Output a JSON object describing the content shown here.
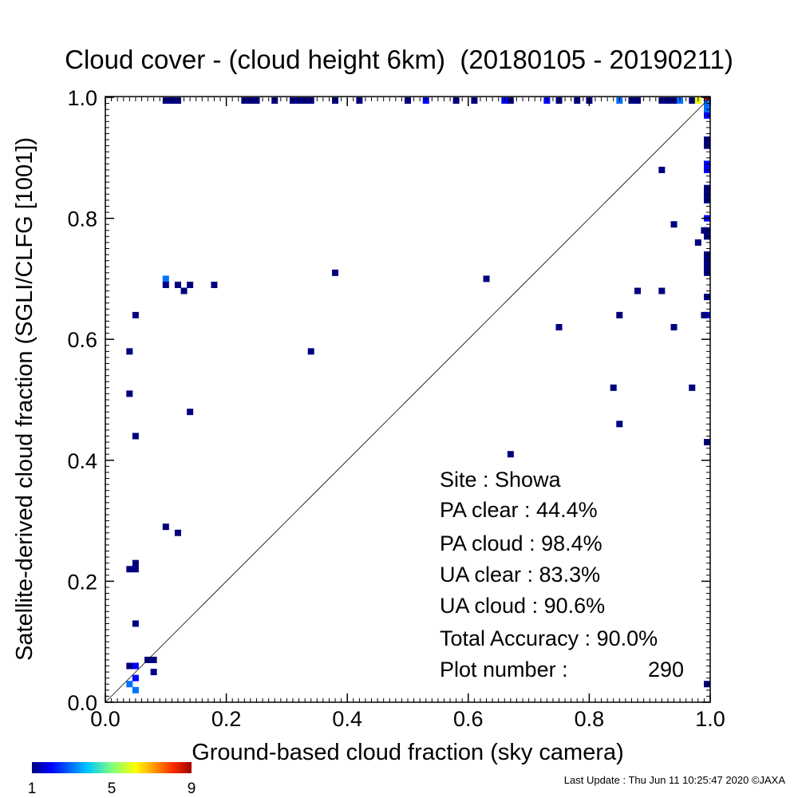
{
  "chart_data": {
    "type": "scatter",
    "title": "Cloud cover - (cloud height 6km)  (20180105 - 20190211)",
    "xlabel": "Ground-based cloud fraction (sky camera)",
    "ylabel": "Satellite-derived cloud fraction (SGLI/CLFG [1001])",
    "xlim": [
      0.0,
      1.0
    ],
    "ylim": [
      0.0,
      1.0
    ],
    "xticks": [
      "0.0",
      "0.2",
      "0.4",
      "0.6",
      "0.8",
      "1.0"
    ],
    "yticks": [
      "0.0",
      "0.2",
      "0.4",
      "0.6",
      "0.8",
      "1.0"
    ],
    "grid": false,
    "reference_line": "1:1 diagonal",
    "colorbar": {
      "ticks": [
        "1",
        "5",
        "9"
      ],
      "min": 1,
      "max": 9,
      "colors": [
        "#00007f",
        "#0000ff",
        "#00c8ff",
        "#7fff7f",
        "#ffff00",
        "#ff6400",
        "#a00000"
      ]
    },
    "points": [
      {
        "x": 0.1,
        "y": 1.0,
        "c": 1
      },
      {
        "x": 0.11,
        "y": 1.0,
        "c": 1
      },
      {
        "x": 0.12,
        "y": 1.0,
        "c": 1
      },
      {
        "x": 0.23,
        "y": 1.0,
        "c": 1
      },
      {
        "x": 0.24,
        "y": 1.0,
        "c": 1
      },
      {
        "x": 0.25,
        "y": 1.0,
        "c": 1
      },
      {
        "x": 0.28,
        "y": 1.0,
        "c": 1
      },
      {
        "x": 0.31,
        "y": 1.0,
        "c": 1
      },
      {
        "x": 0.32,
        "y": 1.0,
        "c": 1
      },
      {
        "x": 0.33,
        "y": 1.0,
        "c": 1
      },
      {
        "x": 0.34,
        "y": 1.0,
        "c": 1
      },
      {
        "x": 0.38,
        "y": 1.0,
        "c": 1
      },
      {
        "x": 0.42,
        "y": 1.0,
        "c": 1
      },
      {
        "x": 0.5,
        "y": 1.0,
        "c": 1
      },
      {
        "x": 0.53,
        "y": 1.0,
        "c": 2
      },
      {
        "x": 0.58,
        "y": 1.0,
        "c": 1
      },
      {
        "x": 0.61,
        "y": 1.0,
        "c": 1
      },
      {
        "x": 0.66,
        "y": 1.0,
        "c": 2
      },
      {
        "x": 0.67,
        "y": 1.0,
        "c": 1
      },
      {
        "x": 0.73,
        "y": 1.0,
        "c": 2
      },
      {
        "x": 0.75,
        "y": 1.0,
        "c": 1
      },
      {
        "x": 0.78,
        "y": 1.0,
        "c": 1
      },
      {
        "x": 0.8,
        "y": 1.0,
        "c": 1
      },
      {
        "x": 0.85,
        "y": 1.0,
        "c": 3
      },
      {
        "x": 0.87,
        "y": 1.0,
        "c": 1
      },
      {
        "x": 0.88,
        "y": 1.0,
        "c": 1
      },
      {
        "x": 0.92,
        "y": 1.0,
        "c": 1
      },
      {
        "x": 0.93,
        "y": 1.0,
        "c": 1
      },
      {
        "x": 0.94,
        "y": 1.0,
        "c": 1
      },
      {
        "x": 0.95,
        "y": 1.0,
        "c": 3
      },
      {
        "x": 0.97,
        "y": 1.0,
        "c": 1
      },
      {
        "x": 0.98,
        "y": 1.0,
        "c": 6
      },
      {
        "x": 1.0,
        "y": 1.0,
        "c": 9
      },
      {
        "x": 1.0,
        "y": 0.99,
        "c": 3
      },
      {
        "x": 1.0,
        "y": 0.98,
        "c": 3
      },
      {
        "x": 1.0,
        "y": 0.97,
        "c": 2
      },
      {
        "x": 1.0,
        "y": 0.93,
        "c": 1
      },
      {
        "x": 1.0,
        "y": 0.92,
        "c": 1
      },
      {
        "x": 1.0,
        "y": 0.89,
        "c": 2
      },
      {
        "x": 1.0,
        "y": 0.88,
        "c": 2
      },
      {
        "x": 1.0,
        "y": 0.85,
        "c": 1
      },
      {
        "x": 1.0,
        "y": 0.84,
        "c": 1
      },
      {
        "x": 1.0,
        "y": 0.83,
        "c": 1
      },
      {
        "x": 1.0,
        "y": 0.8,
        "c": 2
      },
      {
        "x": 1.0,
        "y": 0.78,
        "c": 1
      },
      {
        "x": 1.0,
        "y": 0.77,
        "c": 1
      },
      {
        "x": 1.0,
        "y": 0.74,
        "c": 1
      },
      {
        "x": 1.0,
        "y": 0.73,
        "c": 1
      },
      {
        "x": 1.0,
        "y": 0.72,
        "c": 1
      },
      {
        "x": 1.0,
        "y": 0.71,
        "c": 1
      },
      {
        "x": 1.0,
        "y": 0.67,
        "c": 1
      },
      {
        "x": 1.0,
        "y": 0.64,
        "c": 2
      },
      {
        "x": 0.99,
        "y": 0.64,
        "c": 1
      },
      {
        "x": 1.0,
        "y": 0.43,
        "c": 1
      },
      {
        "x": 1.0,
        "y": 0.03,
        "c": 1
      },
      {
        "x": 0.99,
        "y": 0.78,
        "c": 1
      },
      {
        "x": 0.98,
        "y": 0.76,
        "c": 1
      },
      {
        "x": 0.92,
        "y": 0.88,
        "c": 1
      },
      {
        "x": 0.94,
        "y": 0.79,
        "c": 1
      },
      {
        "x": 0.92,
        "y": 0.68,
        "c": 1
      },
      {
        "x": 0.94,
        "y": 0.62,
        "c": 1
      },
      {
        "x": 0.97,
        "y": 0.52,
        "c": 1
      },
      {
        "x": 0.88,
        "y": 0.68,
        "c": 1
      },
      {
        "x": 0.85,
        "y": 0.64,
        "c": 1
      },
      {
        "x": 0.84,
        "y": 0.52,
        "c": 1
      },
      {
        "x": 0.85,
        "y": 0.46,
        "c": 1
      },
      {
        "x": 0.75,
        "y": 0.62,
        "c": 1
      },
      {
        "x": 0.67,
        "y": 0.41,
        "c": 1
      },
      {
        "x": 0.63,
        "y": 0.7,
        "c": 1
      },
      {
        "x": 0.38,
        "y": 0.71,
        "c": 1
      },
      {
        "x": 0.34,
        "y": 0.58,
        "c": 1
      },
      {
        "x": 0.18,
        "y": 0.69,
        "c": 1
      },
      {
        "x": 0.14,
        "y": 0.69,
        "c": 1
      },
      {
        "x": 0.13,
        "y": 0.68,
        "c": 1
      },
      {
        "x": 0.12,
        "y": 0.69,
        "c": 1
      },
      {
        "x": 0.1,
        "y": 0.7,
        "c": 3
      },
      {
        "x": 0.1,
        "y": 0.69,
        "c": 1
      },
      {
        "x": 0.14,
        "y": 0.48,
        "c": 1
      },
      {
        "x": 0.05,
        "y": 0.64,
        "c": 1
      },
      {
        "x": 0.04,
        "y": 0.58,
        "c": 1
      },
      {
        "x": 0.04,
        "y": 0.51,
        "c": 1
      },
      {
        "x": 0.05,
        "y": 0.44,
        "c": 1
      },
      {
        "x": 0.1,
        "y": 0.29,
        "c": 1
      },
      {
        "x": 0.12,
        "y": 0.28,
        "c": 1
      },
      {
        "x": 0.04,
        "y": 0.22,
        "c": 1
      },
      {
        "x": 0.05,
        "y": 0.23,
        "c": 1
      },
      {
        "x": 0.05,
        "y": 0.22,
        "c": 1
      },
      {
        "x": 0.05,
        "y": 0.13,
        "c": 1
      },
      {
        "x": 0.07,
        "y": 0.07,
        "c": 1
      },
      {
        "x": 0.08,
        "y": 0.07,
        "c": 1
      },
      {
        "x": 0.04,
        "y": 0.06,
        "c": 1
      },
      {
        "x": 0.05,
        "y": 0.06,
        "c": 2
      },
      {
        "x": 0.08,
        "y": 0.05,
        "c": 1
      },
      {
        "x": 0.05,
        "y": 0.04,
        "c": 2
      },
      {
        "x": 0.04,
        "y": 0.03,
        "c": 3
      },
      {
        "x": 0.05,
        "y": 0.02,
        "c": 3
      }
    ]
  },
  "stats": {
    "site": "Site : Showa",
    "pa_clear": "PA clear :  44.4%",
    "pa_cloud": "PA cloud :  98.4%",
    "ua_clear": "UA clear :  83.3%",
    "ua_cloud": "UA cloud :  90.6%",
    "total_accuracy": "Total Accuracy :  90.0%",
    "plot_number_label": "Plot number :",
    "plot_number": "290"
  },
  "footer": "Last Update : Thu Jun 11 10:25:47 2020  ©JAXA"
}
